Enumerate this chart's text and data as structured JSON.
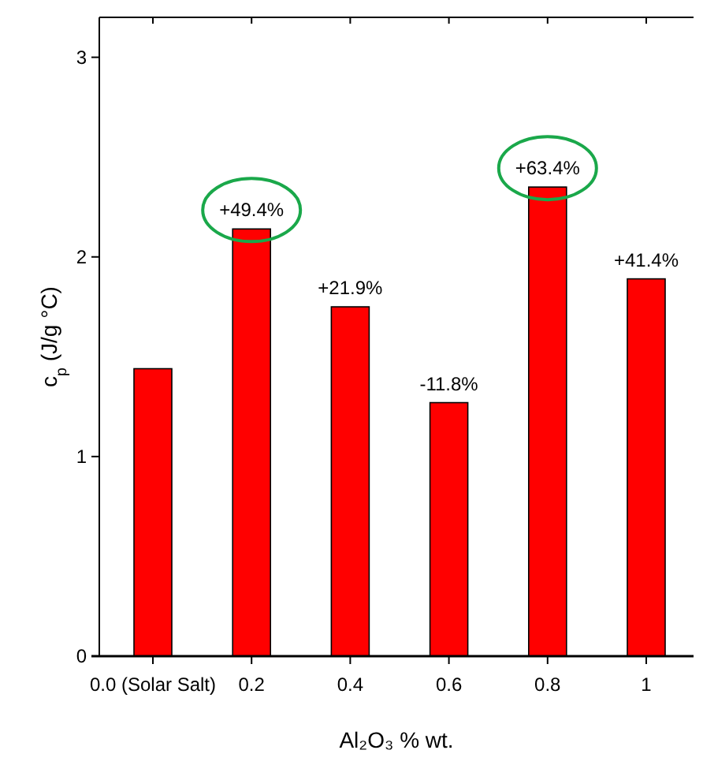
{
  "chart_data": {
    "type": "bar",
    "xlabel": "Al₂O₃ % wt.",
    "ylabel": "c$_{p}$ (J/g °C)",
    "categories": [
      "0.0 (Solar Salt)",
      "0.2",
      "0.4",
      "0.6",
      "0.8",
      "1"
    ],
    "values": [
      1.44,
      2.14,
      1.75,
      1.27,
      2.35,
      1.89
    ],
    "annotations": [
      {
        "text": "+49.4%",
        "x": "0.2",
        "y": 2.14
      },
      {
        "text": "+21.9%",
        "x": "0.4",
        "y": 1.75
      },
      {
        "text": "-11.8%",
        "x": "0.6",
        "y": 1.27
      },
      {
        "text": "+63.4%",
        "x": "0.8",
        "y": 2.35
      },
      {
        "text": "+41.4%",
        "x": "1",
        "y": 1.89
      }
    ],
    "color": "#ff0000",
    "ylim": [
      0,
      3.2
    ],
    "yticks": [
      0,
      1,
      2,
      3
    ],
    "grid": false
  }
}
